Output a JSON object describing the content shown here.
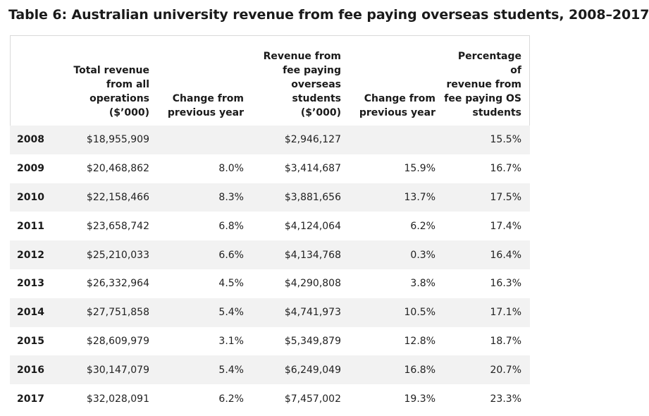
{
  "title": "Table 6: Australian university revenue from fee paying overseas students, 2008–2017",
  "table": {
    "headers": [
      "",
      "Total revenue\nfrom all\noperations\n($’000)",
      "Change from\nprevious year",
      "Revenue from\nfee paying\noverseas\nstudents\n($’000)",
      "Change from\nprevious year",
      "Percentage of\nrevenue from\nfee paying OS\nstudents"
    ],
    "rows": [
      {
        "year": "2008",
        "total": "$18,955,909",
        "change_total": "",
        "os_revenue": "$2,946,127",
        "change_os": "",
        "percentage": "15.5%"
      },
      {
        "year": "2009",
        "total": "$20,468,862",
        "change_total": "8.0%",
        "os_revenue": "$3,414,687",
        "change_os": "15.9%",
        "percentage": "16.7%"
      },
      {
        "year": "2010",
        "total": "$22,158,466",
        "change_total": "8.3%",
        "os_revenue": "$3,881,656",
        "change_os": "13.7%",
        "percentage": "17.5%"
      },
      {
        "year": "2011",
        "total": "$23,658,742",
        "change_total": "6.8%",
        "os_revenue": "$4,124,064",
        "change_os": "6.2%",
        "percentage": "17.4%"
      },
      {
        "year": "2012",
        "total": "$25,210,033",
        "change_total": "6.6%",
        "os_revenue": "$4,134,768",
        "change_os": "0.3%",
        "percentage": "16.4%"
      },
      {
        "year": "2013",
        "total": "$26,332,964",
        "change_total": "4.5%",
        "os_revenue": "$4,290,808",
        "change_os": "3.8%",
        "percentage": "16.3%"
      },
      {
        "year": "2014",
        "total": "$27,751,858",
        "change_total": "5.4%",
        "os_revenue": "$4,741,973",
        "change_os": "10.5%",
        "percentage": "17.1%"
      },
      {
        "year": "2015",
        "total": "$28,609,979",
        "change_total": "3.1%",
        "os_revenue": "$5,349,879",
        "change_os": "12.8%",
        "percentage": "18.7%"
      },
      {
        "year": "2016",
        "total": "$30,147,079",
        "change_total": "5.4%",
        "os_revenue": "$6,249,049",
        "change_os": "16.8%",
        "percentage": "20.7%"
      },
      {
        "year": "2017",
        "total": "$32,028,091",
        "change_total": "6.2%",
        "os_revenue": "$7,457,002",
        "change_os": "19.3%",
        "percentage": "23.3%"
      }
    ]
  },
  "colors": {
    "stripe": "#f2f2f2",
    "border": "#d9d9d9",
    "text": "#222222"
  }
}
